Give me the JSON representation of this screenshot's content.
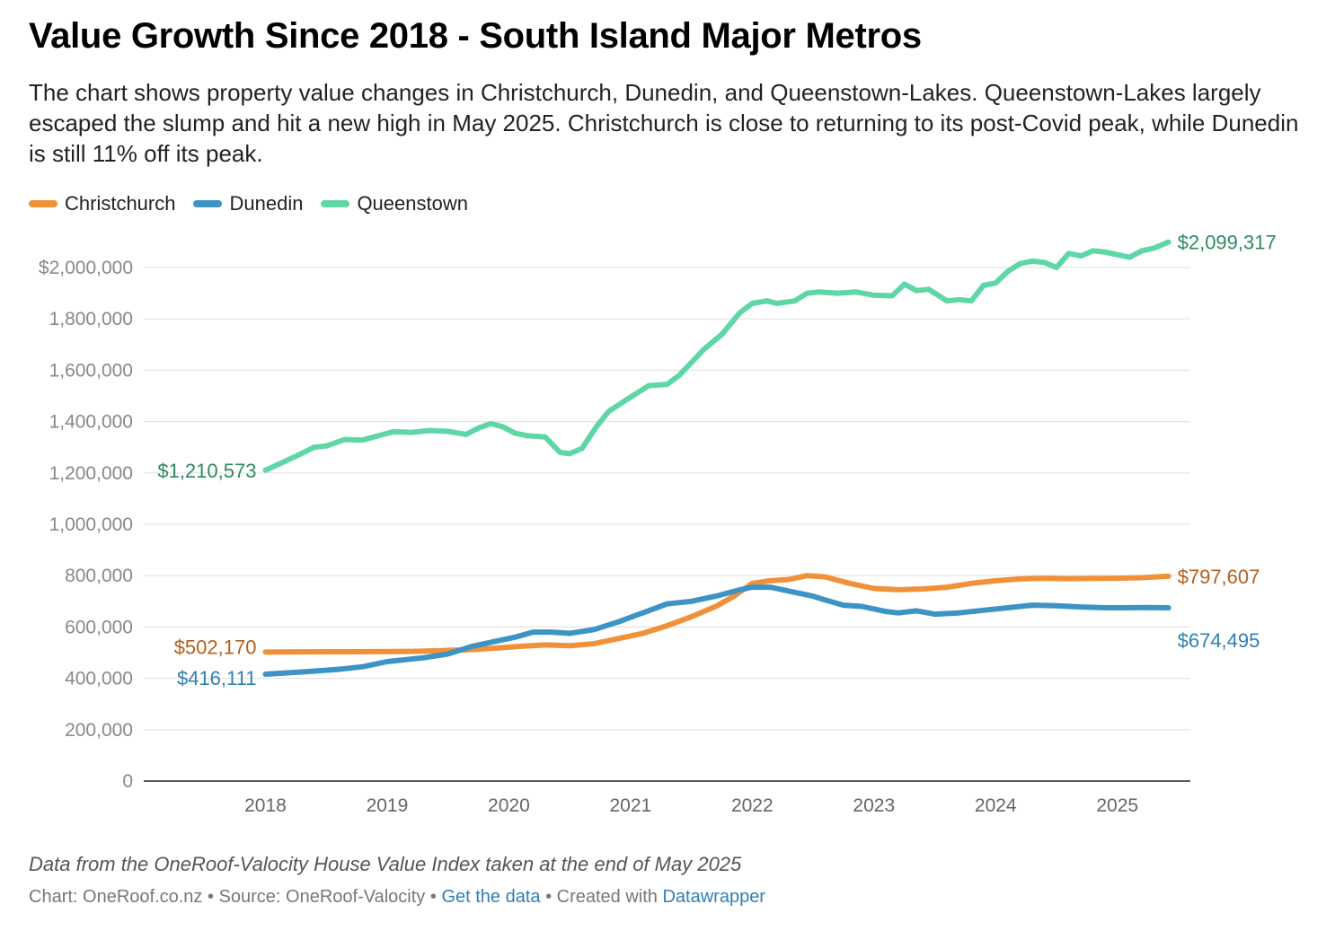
{
  "title": "Value Growth Since 2018 - South Island Major Metros",
  "description": "The chart shows property value changes in Christchurch, Dunedin, and Queenstown-Lakes. Queenstown-Lakes largely escaped the slump and hit a new high in May 2025. Christchurch is close to returning to its post-Covid peak, while Dunedin is still 11% off its peak.",
  "legend": [
    {
      "name": "Christchurch",
      "color": "#f0913a"
    },
    {
      "name": "Dunedin",
      "color": "#3d93c4"
    },
    {
      "name": "Queenstown",
      "color": "#5fd6a6"
    }
  ],
  "footer": {
    "note": "Data from the OneRoof-Valocity House Value Index taken at the end of May 2025",
    "chart_by": "Chart: OneRoof.co.nz",
    "sep1": " • ",
    "source": "Source: OneRoof-Valocity",
    "sep2": " • ",
    "get_data": "Get the data",
    "sep3": " • Created with ",
    "datawrapper": "Datawrapper"
  },
  "chart_data": {
    "type": "line",
    "title": "Value Growth Since 2018 - South Island Major Metros",
    "xlabel": "",
    "ylabel": "",
    "xlim": [
      2017.0,
      2025.6
    ],
    "ylim": [
      0,
      2000000
    ],
    "y_ticks": [
      0,
      200000,
      400000,
      600000,
      800000,
      1000000,
      1200000,
      1400000,
      1600000,
      1800000,
      2000000
    ],
    "y_tick_labels": [
      "0",
      "200,000",
      "400,000",
      "600,000",
      "800,000",
      "1,000,000",
      "1,200,000",
      "1,400,000",
      "1,600,000",
      "1,800,000",
      "$2,000,000"
    ],
    "x_ticks": [
      2018,
      2019,
      2020,
      2021,
      2022,
      2023,
      2024,
      2025
    ],
    "x_tick_labels": [
      "2018",
      "2019",
      "2020",
      "2021",
      "2022",
      "2023",
      "2024",
      "2025"
    ],
    "series": [
      {
        "name": "Queenstown",
        "color": "#5fd6a6",
        "label_color": "#2e8a5e",
        "start_label": "$1,210,573",
        "end_label": "$2,099,317",
        "x": [
          2018.0,
          2018.1,
          2018.25,
          2018.4,
          2018.5,
          2018.65,
          2018.8,
          2018.95,
          2019.05,
          2019.2,
          2019.35,
          2019.5,
          2019.65,
          2019.75,
          2019.85,
          2019.95,
          2020.05,
          2020.15,
          2020.3,
          2020.42,
          2020.5,
          2020.6,
          2020.72,
          2020.82,
          2020.95,
          2021.05,
          2021.15,
          2021.3,
          2021.4,
          2021.5,
          2021.6,
          2021.75,
          2021.9,
          2022.0,
          2022.12,
          2022.2,
          2022.35,
          2022.45,
          2022.55,
          2022.7,
          2022.85,
          2023.0,
          2023.15,
          2023.25,
          2023.35,
          2023.45,
          2023.6,
          2023.7,
          2023.8,
          2023.9,
          2024.0,
          2024.1,
          2024.2,
          2024.3,
          2024.4,
          2024.5,
          2024.6,
          2024.7,
          2024.8,
          2024.9,
          2025.0,
          2025.1,
          2025.2,
          2025.3,
          2025.42
        ],
        "values": [
          1210573,
          1232000,
          1265000,
          1300000,
          1305000,
          1330000,
          1328000,
          1348000,
          1360000,
          1358000,
          1365000,
          1362000,
          1350000,
          1375000,
          1392000,
          1380000,
          1355000,
          1345000,
          1340000,
          1280000,
          1275000,
          1295000,
          1380000,
          1440000,
          1480000,
          1510000,
          1540000,
          1545000,
          1580000,
          1630000,
          1680000,
          1740000,
          1825000,
          1860000,
          1870000,
          1860000,
          1870000,
          1900000,
          1905000,
          1900000,
          1905000,
          1892000,
          1890000,
          1935000,
          1910000,
          1915000,
          1870000,
          1875000,
          1870000,
          1930000,
          1940000,
          1985000,
          2015000,
          2025000,
          2020000,
          2000000,
          2055000,
          2045000,
          2065000,
          2060000,
          2050000,
          2040000,
          2065000,
          2075000,
          2099317
        ]
      },
      {
        "name": "Christchurch",
        "color": "#f0913a",
        "label_color": "#b55f1c",
        "start_label": "$502,170",
        "end_label": "$797,607",
        "x": [
          2018.0,
          2018.3,
          2018.6,
          2018.9,
          2019.2,
          2019.45,
          2019.7,
          2019.9,
          2020.1,
          2020.3,
          2020.5,
          2020.7,
          2020.9,
          2021.1,
          2021.3,
          2021.5,
          2021.7,
          2021.85,
          2022.0,
          2022.15,
          2022.3,
          2022.45,
          2022.6,
          2022.8,
          2023.0,
          2023.2,
          2023.4,
          2023.6,
          2023.8,
          2024.0,
          2024.2,
          2024.4,
          2024.6,
          2024.8,
          2025.0,
          2025.2,
          2025.42
        ],
        "values": [
          502170,
          503000,
          503500,
          504000,
          505000,
          508000,
          512000,
          518000,
          525000,
          530000,
          527000,
          535000,
          555000,
          575000,
          605000,
          640000,
          680000,
          720000,
          770000,
          780000,
          785000,
          800000,
          795000,
          770000,
          750000,
          745000,
          748000,
          755000,
          770000,
          780000,
          787000,
          790000,
          788000,
          789000,
          790000,
          792000,
          797607
        ]
      },
      {
        "name": "Dunedin",
        "color": "#3d93c4",
        "label_color": "#2f7fb0",
        "start_label": "$416,111",
        "end_label": "$674,495",
        "x": [
          2018.0,
          2018.3,
          2018.6,
          2018.8,
          2019.0,
          2019.3,
          2019.5,
          2019.7,
          2019.9,
          2020.05,
          2020.2,
          2020.35,
          2020.5,
          2020.7,
          2020.9,
          2021.1,
          2021.3,
          2021.5,
          2021.7,
          2021.9,
          2022.0,
          2022.15,
          2022.3,
          2022.5,
          2022.6,
          2022.75,
          2022.9,
          2023.1,
          2023.2,
          2023.35,
          2023.5,
          2023.7,
          2023.9,
          2024.1,
          2024.3,
          2024.5,
          2024.7,
          2024.9,
          2025.1,
          2025.25,
          2025.42
        ],
        "values": [
          416111,
          425000,
          435000,
          445000,
          465000,
          480000,
          495000,
          525000,
          545000,
          560000,
          580000,
          580000,
          575000,
          590000,
          620000,
          655000,
          690000,
          700000,
          720000,
          745000,
          755000,
          755000,
          740000,
          720000,
          705000,
          685000,
          680000,
          660000,
          655000,
          663000,
          650000,
          655000,
          665000,
          675000,
          685000,
          683000,
          678000,
          675000,
          675000,
          676000,
          674495
        ]
      }
    ]
  }
}
